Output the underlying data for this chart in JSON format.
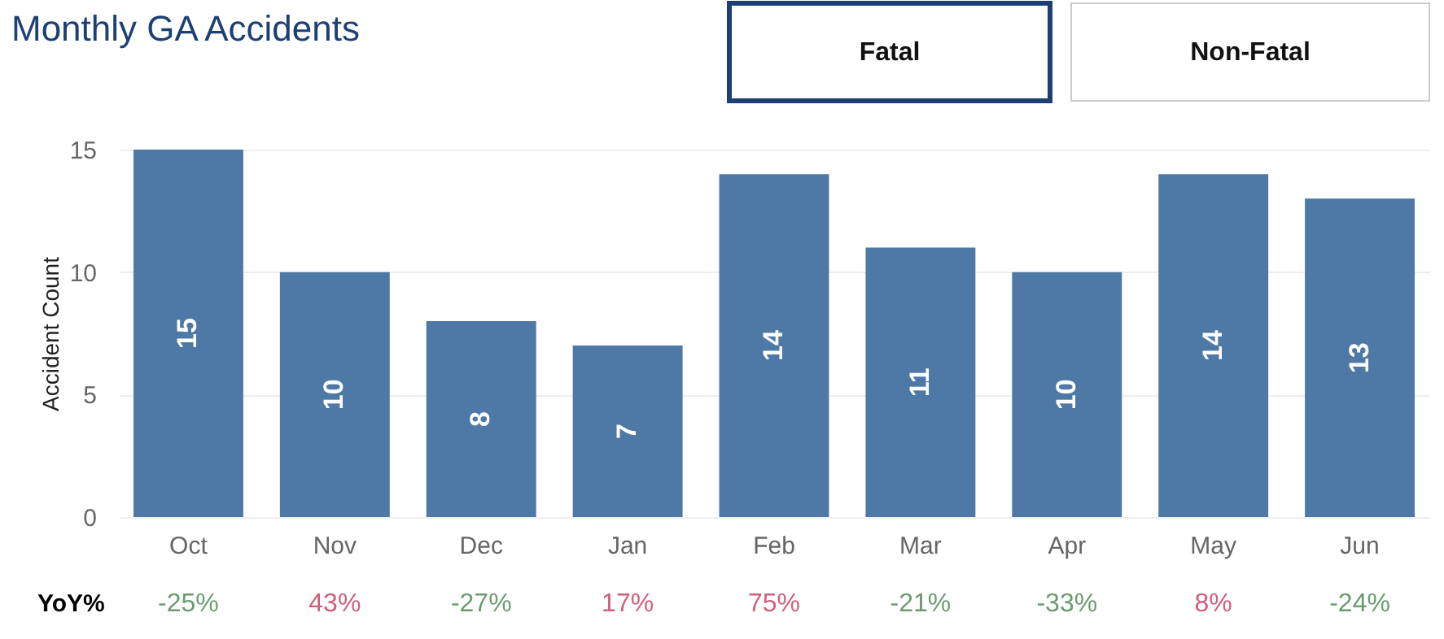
{
  "chart_data": {
    "type": "bar",
    "title": "Monthly GA Accidents",
    "ylabel": "Accident Count",
    "categories": [
      "Oct",
      "Nov",
      "Dec",
      "Jan",
      "Feb",
      "Mar",
      "Apr",
      "May",
      "Jun"
    ],
    "values": [
      15,
      10,
      8,
      7,
      14,
      11,
      10,
      14,
      13
    ],
    "color": "#4e79a7",
    "ylim": [
      0,
      15
    ],
    "yticks": [
      0,
      5,
      10,
      15
    ],
    "grid": "y",
    "data_labels": true,
    "annotations": [
      "Fatal",
      "Non-Fatal",
      "YoY%",
      "-25%",
      "43%",
      "-27%",
      "17%",
      "75%",
      "-21%",
      "-33%",
      "8%",
      "-24%"
    ]
  }
}
